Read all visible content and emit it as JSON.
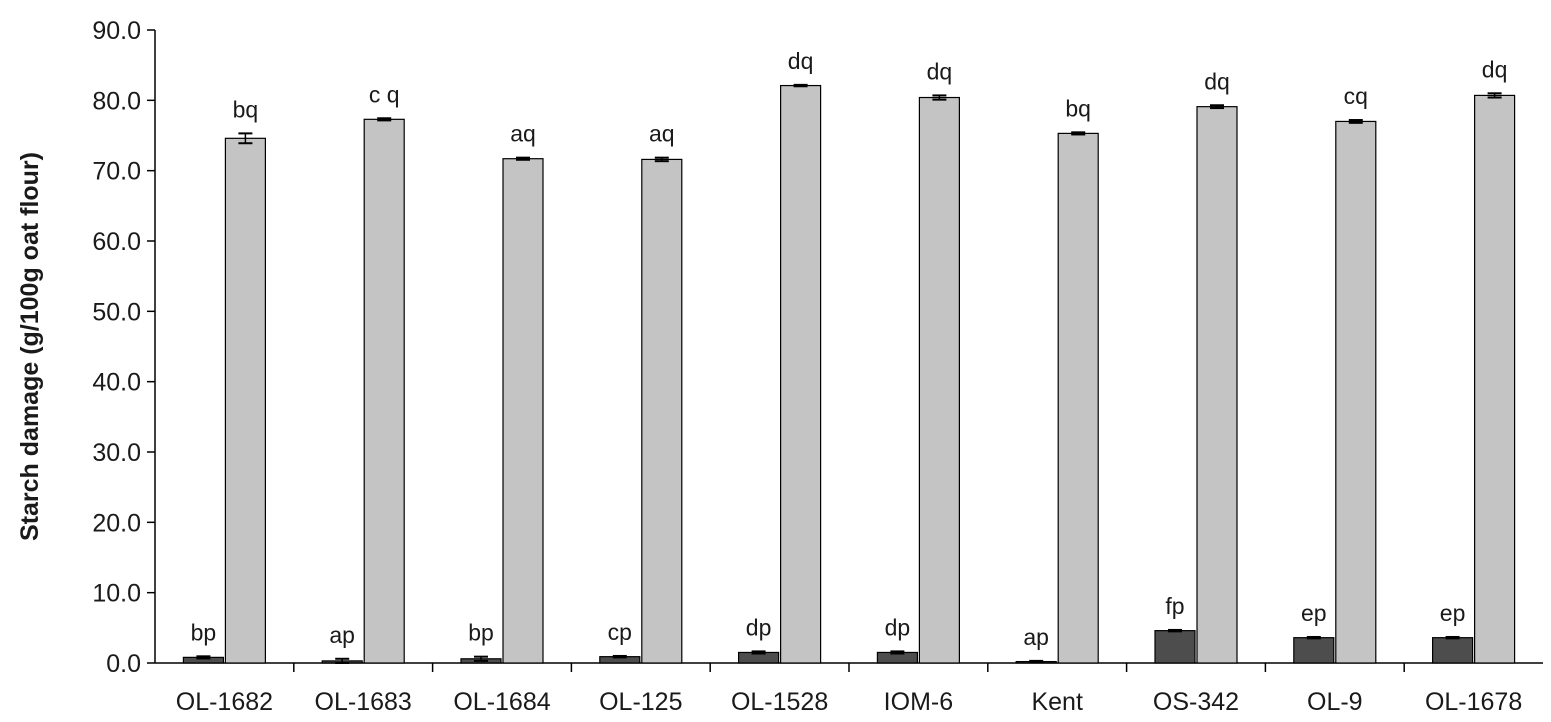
{
  "chart_data": {
    "type": "bar",
    "title": "",
    "xlabel": "",
    "ylabel": "Starch damage (g/100g oat flour)",
    "ylim": [
      0,
      90
    ],
    "yticks": [
      "0.0",
      "10.0",
      "20.0",
      "30.0",
      "40.0",
      "50.0",
      "60.0",
      "70.0",
      "80.0",
      "90.0"
    ],
    "grid": false,
    "legend": "none",
    "categories": [
      "OL-1682",
      "OL-1683",
      "OL-1684",
      "OL-125",
      "OL-1528",
      "IOM-6",
      "Kent",
      "OS-342",
      "OL-9",
      "OL-1678"
    ],
    "series": [
      {
        "color": "#4d4d4d",
        "values": [
          0.8,
          0.3,
          0.6,
          0.9,
          1.5,
          1.5,
          0.2,
          4.6,
          3.6,
          3.6
        ],
        "errors": [
          0.15,
          0.3,
          0.3,
          0.1,
          0.15,
          0.15,
          0.1,
          0.1,
          0.1,
          0.1
        ],
        "labels": [
          "bp",
          "ap",
          "bp",
          "cp",
          "dp",
          "dp",
          "ap",
          "fp",
          "ep",
          "ep"
        ]
      },
      {
        "color": "#c4c4c4",
        "values": [
          74.6,
          77.3,
          71.7,
          71.6,
          82.1,
          80.4,
          75.3,
          79.1,
          77.0,
          80.7
        ],
        "errors": [
          0.7,
          0.15,
          0.15,
          0.25,
          0.1,
          0.3,
          0.15,
          0.2,
          0.2,
          0.3
        ],
        "labels": [
          "bq",
          "c q",
          "aq",
          "aq",
          "dq",
          "dq",
          "bq",
          "dq",
          "cq",
          "dq"
        ]
      }
    ]
  }
}
